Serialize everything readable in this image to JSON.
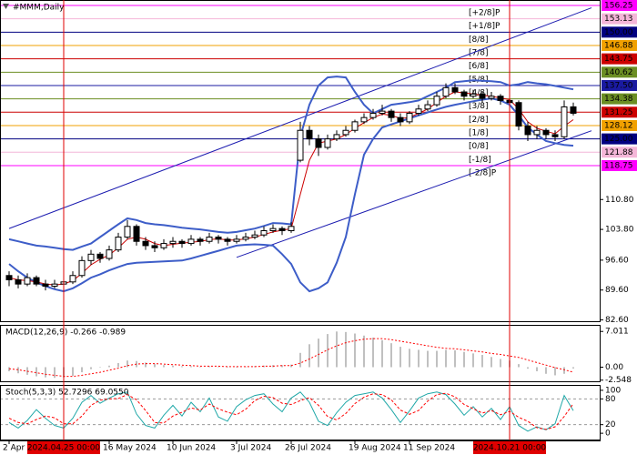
{
  "chart_data": [
    {
      "type": "candlestick",
      "title": "#MMM,Daily",
      "categories": [
        "2 Apr 2024",
        null,
        null,
        null,
        null,
        null,
        "2024.04.25 00:00",
        null,
        null,
        null,
        null,
        "16 May 2024",
        null,
        null,
        null,
        null,
        null,
        null,
        "10 Jun 2024",
        null,
        null,
        null,
        null,
        null,
        null,
        "3 Jul 2024",
        null,
        null,
        null,
        null,
        null,
        "26 Jul 2024",
        null,
        null,
        null,
        null,
        null,
        null,
        "19 Aug 2024",
        null,
        null,
        null,
        null,
        null,
        "11 Sep 2024",
        null,
        null,
        null,
        null,
        null,
        null,
        null,
        null,
        null,
        null,
        "2024.10.21 00:00",
        null,
        null,
        null,
        null,
        null,
        null,
        null
      ],
      "highlighted_categories": [
        "2024.04.25 00:00",
        "2024.10.21 00:00"
      ],
      "open": [
        93,
        92,
        91,
        92.5,
        91,
        90.5,
        91,
        91.5,
        93,
        96.5,
        98,
        97,
        99,
        102,
        104.5,
        101,
        100,
        99.5,
        100.5,
        101,
        100.5,
        101.5,
        101,
        102,
        101.5,
        101,
        101.5,
        102,
        102.5,
        103.5,
        104,
        103.5,
        120,
        127,
        125,
        123,
        125,
        126,
        127,
        129,
        130,
        131,
        131.5,
        130,
        129,
        131,
        132,
        133,
        135,
        137,
        136,
        135,
        135.5,
        134.5,
        135,
        134,
        133.5,
        128,
        126,
        127,
        126,
        125.5,
        132.5
      ],
      "high": [
        94,
        93,
        93.5,
        93,
        92,
        92,
        92.5,
        94,
        97.5,
        99,
        98.5,
        100,
        103,
        106,
        105,
        102,
        101,
        101.5,
        102,
        101.5,
        102.5,
        102,
        103,
        102.5,
        102,
        102.5,
        103,
        103.5,
        104.5,
        105,
        104.5,
        105.5,
        129,
        128,
        126,
        126,
        127,
        128,
        129.5,
        131,
        132,
        133,
        132,
        131,
        131.5,
        133,
        134,
        136,
        138,
        138,
        136.5,
        136.5,
        136,
        136,
        135.5,
        141,
        134,
        129,
        128,
        127.5,
        127,
        134,
        133.5
      ],
      "low": [
        90.5,
        90,
        90.5,
        90.5,
        89.5,
        90,
        90.5,
        91,
        92.5,
        95.5,
        96,
        96.5,
        98.5,
        101.5,
        100,
        99,
        98.5,
        99,
        99.5,
        99.5,
        100,
        100,
        100.5,
        100.5,
        100,
        100.5,
        101,
        101.5,
        102,
        103,
        102.5,
        103,
        119.5,
        123.5,
        121,
        122.5,
        124.5,
        125.5,
        126.5,
        128.5,
        129.5,
        130.5,
        129,
        128,
        128.5,
        130.5,
        131.5,
        132.5,
        134.5,
        135.5,
        134,
        134.5,
        133.5,
        134,
        133,
        133,
        127,
        124.5,
        125,
        125,
        124.5,
        125,
        130.5
      ],
      "close": [
        92,
        91,
        92.5,
        91,
        90.5,
        91,
        91.5,
        93,
        96.5,
        98,
        97,
        99,
        102,
        104.5,
        101,
        100,
        99.5,
        100.5,
        101,
        100.5,
        101.5,
        101,
        102,
        101.5,
        101,
        101.5,
        102,
        102.5,
        103.5,
        104,
        103.5,
        104.5,
        127,
        125,
        123,
        125,
        126,
        127,
        129,
        130,
        131,
        131.5,
        130,
        129,
        131,
        132,
        133,
        135,
        137,
        136,
        135,
        135.5,
        134.5,
        135,
        134,
        133.5,
        128,
        126,
        127,
        126,
        125.5,
        132.5,
        131
      ],
      "candle_color": "#000000",
      "bull_fill": "#ffffff",
      "series": [
        {
          "color": "#3d5dc8",
          "width": 2,
          "values": [
            101.5,
            101,
            100.5,
            100,
            99.8,
            99.5,
            99.2,
            99,
            99.8,
            100.5,
            102,
            103.5,
            105,
            106.4,
            106,
            105.3,
            105,
            104.8,
            104.5,
            104.2,
            104,
            103.8,
            103.5,
            103.2,
            103,
            103.2,
            103.6,
            104,
            104.6,
            105.3,
            105.2,
            105,
            125.5,
            133,
            137.5,
            139.4,
            139.6,
            139.4,
            136,
            133,
            131,
            132,
            133,
            133.3,
            133.6,
            134,
            135,
            136,
            137,
            138.3,
            138.5,
            138.7,
            138.6,
            138.5,
            138.3,
            137.5,
            137.8,
            138.3,
            138,
            137.8,
            137.4,
            137,
            136.6
          ]
        },
        {
          "color": "#3d5dc8",
          "width": 2,
          "values": [
            95.7,
            94,
            92.5,
            91.4,
            90.5,
            89.8,
            89.3,
            90,
            91.2,
            92.5,
            93.3,
            94.2,
            95,
            95.7,
            96,
            96.1,
            96.2,
            96.3,
            96.4,
            96.5,
            97,
            97.6,
            98.2,
            98.8,
            99.4,
            100,
            100.2,
            100.3,
            100.2,
            100,
            98,
            95.7,
            91.4,
            89.3,
            90,
            91.4,
            96,
            102,
            112,
            121.3,
            125,
            127.7,
            128.4,
            129.1,
            129.8,
            130.5,
            131.2,
            131.9,
            132.5,
            133,
            133.4,
            133.8,
            134.2,
            134.5,
            134,
            133,
            130.5,
            127.7,
            126,
            124.5,
            124,
            123.6,
            123.4
          ]
        },
        {
          "color": "#cc0000",
          "width": 1,
          "values": [
            92.5,
            92,
            91.8,
            91.5,
            91,
            90.8,
            91,
            91.8,
            93.5,
            95.5,
            96.8,
            97.8,
            99.5,
            101.5,
            102,
            101.5,
            100.5,
            100,
            100.3,
            100.6,
            100.8,
            101,
            101.4,
            101.6,
            101.3,
            101.3,
            101.6,
            102,
            102.6,
            103.2,
            103.6,
            104,
            112,
            120,
            124,
            124.5,
            125,
            126,
            127.5,
            128.8,
            130,
            130.8,
            130.5,
            129.8,
            130,
            131,
            132,
            133.5,
            135,
            136,
            135.8,
            135.5,
            135.2,
            135,
            134.6,
            134.2,
            132,
            129,
            127.5,
            126.8,
            126.2,
            128,
            129.5
          ]
        }
      ],
      "trendlines": [
        {
          "color": "#1c1cb0",
          "x": [
            0,
            64
          ],
          "y": [
            104.0,
            155.7
          ]
        },
        {
          "color": "#1c1cb0",
          "x": [
            25,
            64
          ],
          "y": [
            97.25,
            126.9
          ]
        }
      ],
      "levels": [
        {
          "value": 156.25,
          "label": "156.25",
          "name": "[+2/8]P",
          "color": "#ff00ff"
        },
        {
          "value": 153.13,
          "label": "153.13",
          "name": "[+1/8]P",
          "color": "#f4b6d8"
        },
        {
          "value": 150,
          "label": "150.00",
          "name": "[8/8]",
          "color": "#000080"
        },
        {
          "value": 146.88,
          "label": "146.88",
          "name": "[7/8]",
          "color": "#f0a000"
        },
        {
          "value": 143.75,
          "label": "143.75",
          "name": "[6/8]",
          "color": "#cc0000"
        },
        {
          "value": 140.62,
          "label": "140.62",
          "name": "[5/8]",
          "color": "#6b8e23"
        },
        {
          "value": 137.5,
          "label": "137.50",
          "name": "[4/8]",
          "color": "#1a1aa0"
        },
        {
          "value": 134.38,
          "label": "134.38",
          "name": "[3/8]",
          "color": "#6b8e23"
        },
        {
          "value": 131.25,
          "label": "131.25",
          "name": "[2/8]",
          "color": "#cc0000"
        },
        {
          "value": 128.12,
          "label": "128.12",
          "name": "[1/8]",
          "color": "#f0a000"
        },
        {
          "value": 125,
          "label": "125.00",
          "name": "[0/8]",
          "color": "#000080"
        },
        {
          "value": 121.88,
          "label": "121.88",
          "name": "[-1/8]",
          "color": "#f4b6d8"
        },
        {
          "value": 118.75,
          "label": "118.75",
          "name": "[-2/8]P",
          "color": "#ff00ff"
        }
      ],
      "ylim": [
        82.08,
        157.53
      ],
      "yticks": [
        {
          "value": 110.8,
          "label": "110.80"
        },
        {
          "value": 103.8,
          "label": "103.80"
        },
        {
          "value": 96.6,
          "label": "96.60"
        },
        {
          "value": 89.6,
          "label": "89.60"
        },
        {
          "value": 82.6,
          "label": "82.60"
        }
      ]
    },
    {
      "type": "bar",
      "title": "MACD(12,26,9) -0.266 -0.989",
      "series": [
        {
          "kind": "bar",
          "color": "#c0c0c0",
          "values": [
            -0.8,
            -1.2,
            -1.5,
            -1.8,
            -2.0,
            -2.1,
            -2.0,
            -1.7,
            -1.0,
            -0.4,
            0,
            0.3,
            0.8,
            1.3,
            1.2,
            0.9,
            0.6,
            0.4,
            0.3,
            0.2,
            0.2,
            0.1,
            0.2,
            0.1,
            0,
            0,
            0.1,
            0.2,
            0.3,
            0.4,
            0.4,
            0.5,
            2.8,
            4.5,
            5.6,
            6.5,
            7.0,
            6.9,
            6.6,
            6.2,
            5.8,
            5.3,
            4.7,
            4.0,
            3.6,
            3.4,
            3.2,
            3.2,
            3.4,
            3.3,
            3.0,
            2.7,
            2.4,
            2.0,
            1.6,
            1.3,
            0.6,
            -0.3,
            -0.8,
            -1.3,
            -1.6,
            -1.3,
            -0.266
          ]
        },
        {
          "kind": "line",
          "color": "#ff0000",
          "dashed": true,
          "values": [
            -0.3,
            -0.5,
            -0.8,
            -1.1,
            -1.4,
            -1.6,
            -1.8,
            -1.8,
            -1.6,
            -1.3,
            -1.0,
            -0.6,
            -0.2,
            0.3,
            0.6,
            0.7,
            0.7,
            0.6,
            0.5,
            0.4,
            0.3,
            0.2,
            0.2,
            0.2,
            0.1,
            0.1,
            0.1,
            0.1,
            0.2,
            0.2,
            0.3,
            0.3,
            0.8,
            1.6,
            2.5,
            3.4,
            4.2,
            4.8,
            5.2,
            5.5,
            5.6,
            5.6,
            5.4,
            5.1,
            4.8,
            4.5,
            4.2,
            3.9,
            3.7,
            3.6,
            3.4,
            3.2,
            3.0,
            2.7,
            2.5,
            2.2,
            1.9,
            1.4,
            0.9,
            0.4,
            -0.1,
            -0.5,
            -0.989
          ]
        }
      ],
      "ylim": [
        -2.95,
        8.3
      ],
      "yticks": [
        7.011,
        {
          "value": 0,
          "label": "0.00"
        },
        -2.548
      ]
    },
    {
      "type": "line",
      "title": "Stoch(5,3,3) 52.7296 69.0550",
      "series": [
        {
          "color": "#20a8a8",
          "values": [
            25,
            12,
            30,
            55,
            35,
            18,
            12,
            35,
            72,
            88,
            70,
            82,
            92,
            96,
            45,
            18,
            12,
            42,
            65,
            40,
            72,
            50,
            82,
            38,
            28,
            62,
            78,
            88,
            92,
            68,
            50,
            82,
            96,
            72,
            28,
            18,
            48,
            72,
            88,
            92,
            96,
            82,
            55,
            25,
            52,
            82,
            92,
            96,
            90,
            68,
            42,
            62,
            38,
            58,
            32,
            62,
            18,
            5,
            15,
            8,
            22,
            88,
            52.7296
          ]
        },
        {
          "color": "#ff0000",
          "dashed": true,
          "values": [
            35,
            25,
            22,
            32,
            40,
            36,
            22,
            22,
            40,
            65,
            77,
            80,
            81,
            90,
            78,
            53,
            25,
            24,
            40,
            49,
            59,
            54,
            68,
            57,
            49,
            43,
            56,
            76,
            86,
            83,
            70,
            67,
            76,
            83,
            65,
            39,
            31,
            46,
            69,
            84,
            92,
            90,
            78,
            54,
            44,
            53,
            75,
            90,
            93,
            85,
            67,
            57,
            47,
            53,
            43,
            51,
            37,
            28,
            13,
            9,
            15,
            39,
            69.055
          ]
        }
      ],
      "levels": [
        80,
        20
      ],
      "ylim": [
        -16.7,
        112.5
      ],
      "yticks": [
        100,
        80,
        20,
        0
      ]
    }
  ]
}
